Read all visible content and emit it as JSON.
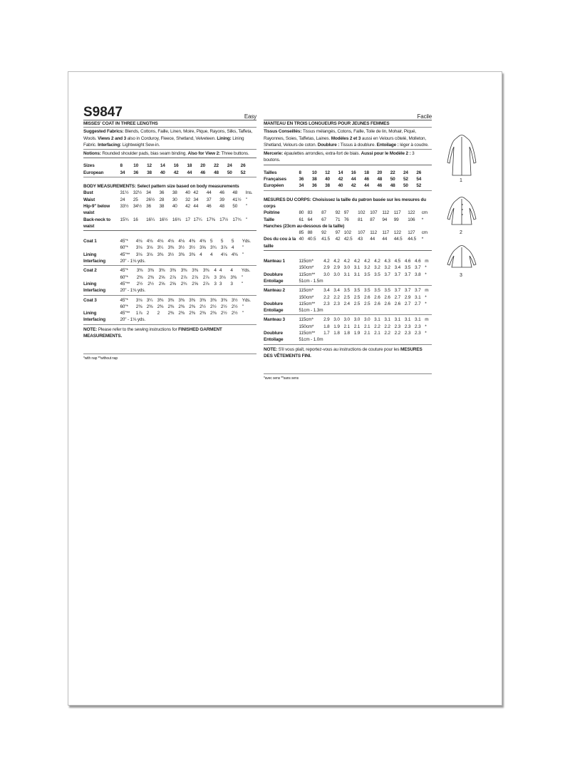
{
  "pattern_number": "S9847",
  "en": {
    "level": "Easy",
    "title": "MISSES' COAT IN THREE LENGTHS",
    "fabrics_label": "Suggested Fabrics:",
    "fabrics_text": " Blends, Cottons, Faille, Linen, Moire, Pique, Rayons, Silks, Taffeta, Wools. ",
    "views_label": "Views 2 and 3",
    "views_text": " also in Corduroy, Fleece, Shetland, Velveteen. ",
    "lining_label": "Lining:",
    "lining_text": " Lining Fabric. ",
    "interfacing_label": "Interfacing:",
    "interfacing_text": " Lightweight Sew-in.",
    "notions_label": "Notions:",
    "notions_text": " Rounded shoulder pads, bias seam binding. ",
    "view2_label": "Also for View 2:",
    "view2_text": " Three buttons.",
    "sizes": [
      [
        "Sizes",
        "8",
        "10",
        "12",
        "14",
        "16",
        "18",
        "20",
        "22",
        "24",
        "26",
        ""
      ],
      [
        "European",
        "34",
        "36",
        "38",
        "40",
        "42",
        "44",
        "46",
        "48",
        "50",
        "52",
        ""
      ]
    ],
    "body_header": "BODY MEASUREMENTS: Select pattern size based on body measurements",
    "body": [
      [
        "Bust",
        "31½",
        "32½",
        "34",
        "36",
        "38",
        "40",
        "42",
        "44",
        "46",
        "48",
        "Ins."
      ],
      [
        "Waist",
        "24",
        "25",
        "26½",
        "28",
        "30",
        "32",
        "34",
        "37",
        "39",
        "41½",
        "\""
      ],
      [
        "Hip-9\" below waist",
        "33½",
        "34½",
        "36",
        "38",
        "40",
        "42",
        "44",
        "46",
        "48",
        "50",
        "\""
      ],
      [
        "Back-neck to waist",
        "15¾",
        "16",
        "16¼",
        "16½",
        "16¾",
        "17",
        "17¼",
        "17⅜",
        "17½",
        "17¾",
        "\""
      ]
    ],
    "coats": [
      [
        [
          "Coat 1",
          "45\"*",
          "4⅛",
          "4⅛",
          "4⅛",
          "4⅛",
          "4⅛",
          "4⅜",
          "4⅜",
          "5",
          "5",
          "5",
          "Yds."
        ],
        [
          "",
          "60\"*",
          "3⅛",
          "3⅛",
          "3¼",
          "3⅜",
          "3½",
          "3½",
          "3⅝",
          "3¾",
          "3⅞",
          "4",
          "\""
        ],
        [
          "Lining",
          "45\"**",
          "3⅛",
          "3⅛",
          "3⅜",
          "3½",
          "3⅜",
          "3⅜",
          "4",
          "4",
          "4⅛",
          "4⅜",
          "\""
        ],
        [
          "Interfacing",
          "20\" - 1⅛ yds."
        ]
      ],
      [
        [
          "Coat 2",
          "45\"*",
          "3⅜",
          "3⅜",
          "3⅜",
          "3⅜",
          "3⅜",
          "3⅜",
          "3⅜",
          "4",
          "4",
          "4",
          "Yds."
        ],
        [
          "",
          "60\"*",
          "2⅜",
          "2⅜",
          "2⅝",
          "2⅞",
          "2⅞",
          "2⅞",
          "2⅞",
          "3",
          "3⅛",
          "3⅜",
          "\""
        ],
        [
          "Lining",
          "45\"**",
          "2½",
          "2½",
          "2⅝",
          "2⅝",
          "2¾",
          "2⅝",
          "2⅞",
          "3",
          "3",
          "3",
          "\""
        ],
        [
          "Interfacing",
          "20\" - 1⅛ yds."
        ]
      ],
      [
        [
          "Coat 3",
          "45\"*",
          "3⅛",
          "3¼",
          "3⅜",
          "3⅜",
          "3⅜",
          "3⅜",
          "3⅜",
          "3⅜",
          "3⅜",
          "3½",
          "Yds."
        ],
        [
          "",
          "60\"*",
          "2⅜",
          "2⅜",
          "2⅜",
          "2⅜",
          "2⅜",
          "2⅜",
          "2½",
          "2½",
          "2½",
          "2½",
          "\""
        ],
        [
          "Lining",
          "45\"**",
          "1⅞",
          "2",
          "2",
          "2⅜",
          "2⅜",
          "2⅜",
          "2⅜",
          "2⅜",
          "2½",
          "2½",
          "\""
        ],
        [
          "Interfacing",
          "20\" - 1⅛ yds."
        ]
      ]
    ],
    "note_label": "NOTE:",
    "note_text": " Please refer to the sewing instructions for ",
    "note_bold": "FINISHED GARMENT MEASUREMENTS.",
    "footnote": "*with nap   **without nap"
  },
  "fr": {
    "level": "Facile",
    "title": "MANTEAU EN TROIS LONGUEURS POUR JEUNES FEMMES",
    "fabrics_label": "Tissus Conseillés:",
    "fabrics_text": " Tissus mélangés, Cotons, Faille, Toile de lin, Mohair, Piqué, Rayonnes, Soies, Taffetas, Laines. ",
    "views_label": "Modèles 2 et 3",
    "views_text": " aussi en Velours côtelé, Molleton, Shetland, Velours de coton. ",
    "lining_label": "Doublure :",
    "lining_text": " Tissus à doublure. ",
    "interfacing_label": "Entoilage :",
    "interfacing_text": " léger à coudre.",
    "notions_label": "Mercerie:",
    "notions_text": " épaulettes arrondies, extra-fort de biais. ",
    "view2_label": "Aussi pour le Modèle 2 :",
    "view2_text": " 3 boutons.",
    "sizes": [
      [
        "Tailles",
        "8",
        "10",
        "12",
        "14",
        "16",
        "18",
        "20",
        "22",
        "24",
        "26",
        ""
      ],
      [
        "Françaises",
        "36",
        "38",
        "40",
        "42",
        "44",
        "46",
        "48",
        "50",
        "52",
        "54",
        ""
      ],
      [
        "Européen",
        "34",
        "36",
        "38",
        "40",
        "42",
        "44",
        "46",
        "48",
        "50",
        "52",
        ""
      ]
    ],
    "body_header": "MESURES DU CORPS: Choisissez la taille du patron basée sur les mesures du corps",
    "body": [
      [
        "Poitrine",
        "80",
        "83",
        "87",
        "92",
        "97",
        "102",
        "107",
        "112",
        "117",
        "122",
        "cm"
      ],
      [
        "Taille",
        "61",
        "64",
        "67",
        "71",
        "76",
        "81",
        "87",
        "94",
        "99",
        "106",
        "*"
      ],
      [
        "Hanches (23cm au-dessous de la taille)"
      ],
      [
        "",
        "85",
        "88",
        "92",
        "97",
        "102",
        "107",
        "112",
        "117",
        "122",
        "127",
        "cm"
      ],
      [
        "Dos du cou à la taille",
        "40",
        "40.5",
        "41.5",
        "42",
        "42.5",
        "43",
        "44",
        "44",
        "44.5",
        "44.5",
        "*"
      ]
    ],
    "coats": [
      [
        [
          "Manteau 1",
          "115cm*",
          "4.2",
          "4.2",
          "4.2",
          "4.2",
          "4.2",
          "4.2",
          "4.3",
          "4.5",
          "4.6",
          "4.6",
          "m"
        ],
        [
          "",
          "150cm*",
          "2.9",
          "2.9",
          "3.0",
          "3.1",
          "3.2",
          "3.2",
          "3.2",
          "3.4",
          "3.5",
          "3.7",
          "*"
        ],
        [
          "Doublure",
          "115cm**",
          "3.0",
          "3.0",
          "3.1",
          "3.1",
          "3.5",
          "3.5",
          "3.7",
          "3.7",
          "3.7",
          "3.8",
          "*"
        ],
        [
          "Entoilage",
          "51cm - 1.5m"
        ]
      ],
      [
        [
          "Manteau 2",
          "115cm*",
          "3.4",
          "3.4",
          "3.5",
          "3.5",
          "3.5",
          "3.5",
          "3.5",
          "3.7",
          "3.7",
          "3.7",
          "m"
        ],
        [
          "",
          "150cm*",
          "2.2",
          "2.2",
          "2.5",
          "2.5",
          "2.6",
          "2.6",
          "2.6",
          "2.7",
          "2.9",
          "3.1",
          "*"
        ],
        [
          "Doublure",
          "115cm**",
          "2.3",
          "2.3",
          "2.4",
          "2.5",
          "2.5",
          "2.6",
          "2.6",
          "2.6",
          "2.7",
          "2.7",
          "*"
        ],
        [
          "Entoilage",
          "51cm - 1.3m"
        ]
      ],
      [
        [
          "Manteau 3",
          "115cm*",
          "2.9",
          "3.0",
          "3.0",
          "3.0",
          "3.0",
          "3.1",
          "3.1",
          "3.1",
          "3.1",
          "3.1",
          "m"
        ],
        [
          "",
          "150cm*",
          "1.8",
          "1.9",
          "2.1",
          "2.1",
          "2.1",
          "2.2",
          "2.2",
          "2.3",
          "2.3",
          "2.3",
          "*"
        ],
        [
          "Doublure",
          "115cm**",
          "1.7",
          "1.8",
          "1.8",
          "1.9",
          "2.1",
          "2.1",
          "2.2",
          "2.2",
          "2.3",
          "2.3",
          "*"
        ],
        [
          "Entoilage",
          "51cm - 1.0m"
        ]
      ]
    ],
    "note_label": "NOTE:",
    "note_text": " S'il vous plaît, reportez-vous au instructions de couture pour les ",
    "note_bold": "MESURES DES VÊTEMENTS FINI.",
    "footnote": "*avec sens   **sans sens"
  },
  "views": [
    "1",
    "2",
    "3"
  ]
}
